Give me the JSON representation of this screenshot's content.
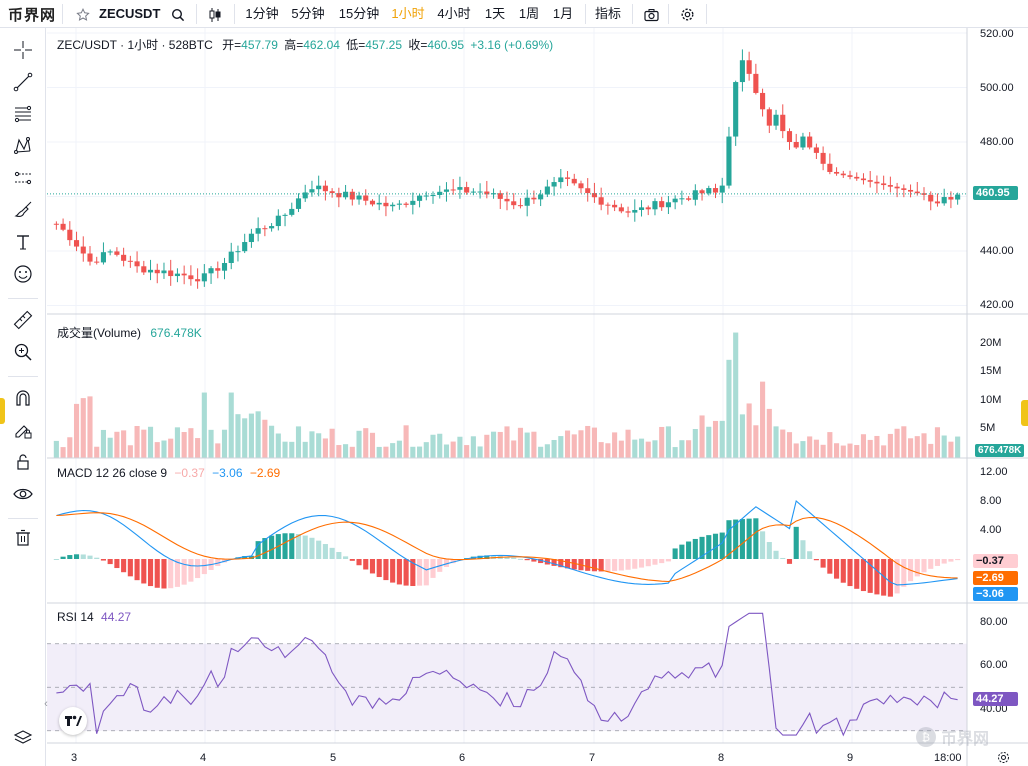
{
  "toolbar": {
    "logo": "币界网",
    "symbol": "ZECUSDT",
    "intervals": [
      "1分钟",
      "5分钟",
      "15分钟",
      "1小时",
      "4小时",
      "1天",
      "1周",
      "1月"
    ],
    "active_interval": "1小时",
    "indicators_label": "指标"
  },
  "legend": {
    "title": "ZEC/USDT · 1小时 · 528BTC",
    "open_label": "开=",
    "open": "457.79",
    "high_label": "高=",
    "high": "462.04",
    "low_label": "低=",
    "low": "457.25",
    "close_label": "收=",
    "close": "460.95",
    "change": "+3.16 (+0.69%)"
  },
  "price_axis": {
    "ticks": [
      "520.00",
      "500.00",
      "480.00",
      "460.00",
      "440.00",
      "420.00"
    ],
    "last_price": "460.95"
  },
  "volume": {
    "label": "成交量(Volume)",
    "value": "676.478K",
    "ticks": [
      "20M",
      "15M",
      "10M",
      "5M"
    ],
    "last_tag": "676.478K"
  },
  "macd": {
    "label": "MACD 12 26 close 9",
    "hist": "−0.37",
    "macd": "−3.06",
    "signal": "−2.69",
    "ticks": [
      "12.00",
      "8.00",
      "4.00"
    ],
    "tag_hist": "−0.37",
    "tag_signal": "−2.69",
    "tag_macd": "−3.06"
  },
  "rsi": {
    "label": "RSI 14",
    "value": "44.27",
    "ticks": [
      "80.00",
      "60.00",
      "40.00"
    ],
    "tag": "44.27"
  },
  "time_axis": {
    "labels": [
      "3",
      "4",
      "5",
      "6",
      "7",
      "8",
      "9",
      "18:00"
    ]
  },
  "watermark": "币界网",
  "colors": {
    "up": "#26a69a",
    "down": "#ef5350",
    "macd_line": "#2196f3",
    "signal_line": "#ff6d00",
    "rsi_line": "#7e57c2",
    "active_interval": "#f0a30a"
  },
  "icons": [
    "star-icon",
    "search-icon",
    "candles-icon",
    "camera-icon",
    "gear-icon",
    "crosshair-icon",
    "trend-line-icon",
    "fib-icon",
    "pattern-icon",
    "prediction-icon",
    "brush-icon",
    "text-icon",
    "emoji-icon",
    "ruler-icon",
    "zoom-icon",
    "magnet-icon",
    "lock-pencil-icon",
    "lock-icon",
    "eye-icon",
    "trash-icon",
    "layers-icon"
  ]
}
